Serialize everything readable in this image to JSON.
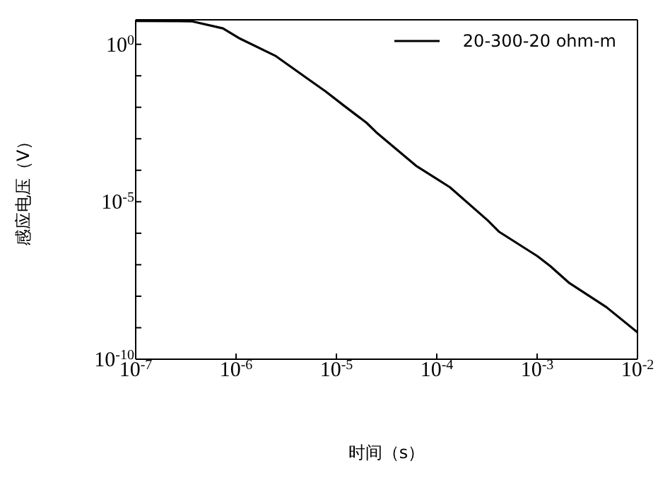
{
  "chart_data": {
    "type": "line",
    "xlabel": "时间（s）",
    "ylabel": "感应电压（V）",
    "log": "xy",
    "legend": "top right",
    "marker": "none",
    "line_style": "solid",
    "x": [
      1e-07,
      3.6e-07,
      7.4e-07,
      1.1e-06,
      2.5e-06,
      5.1e-06,
      7.8e-06,
      1.2e-05,
      2e-05,
      2.5e-05,
      6.2e-05,
      0.000135,
      0.00032,
      0.00042,
      0.001,
      0.00135,
      0.0021,
      0.0049,
      0.01
    ],
    "series": [
      {
        "name": "20-300-20 ohm-m",
        "color": "#000000",
        "values": [
          5.5,
          5.4,
          3.2,
          1.5,
          0.42,
          0.083,
          0.032,
          0.011,
          0.0032,
          0.0016,
          0.00014,
          2.9e-05,
          2.6e-06,
          1.1e-06,
          1.9e-07,
          9.1e-08,
          2.6e-08,
          4.5e-09,
          7.1e-10
        ]
      }
    ],
    "xlim": [
      1e-07,
      0.01
    ],
    "ylim": [
      1e-10,
      6
    ],
    "xticks": [
      {
        "value": 1e-07,
        "label": "10$^{-7}$"
      },
      {
        "value": 1e-06,
        "label": "10$^{-6}$"
      },
      {
        "value": 1e-05,
        "label": "10$^{-5}$"
      },
      {
        "value": 0.0001,
        "label": "10$^{-4}$"
      },
      {
        "value": 0.001,
        "label": "10$^{-3}$"
      },
      {
        "value": 0.01,
        "label": "10$^{-2}$"
      }
    ],
    "yticks": [
      {
        "value": 1e-10,
        "label": "10$^{-10}$"
      },
      {
        "value": 1e-09,
        "label": null
      },
      {
        "value": 1e-08,
        "label": null
      },
      {
        "value": 1e-07,
        "label": null
      },
      {
        "value": 1e-06,
        "label": null
      },
      {
        "value": 1e-05,
        "label": "10$^{-5}$"
      },
      {
        "value": 0.0001,
        "label": null
      },
      {
        "value": 0.001,
        "label": null
      },
      {
        "value": 0.01,
        "label": null
      },
      {
        "value": 0.1,
        "label": null
      },
      {
        "value": 1,
        "label": "10$^{0}$"
      }
    ]
  }
}
